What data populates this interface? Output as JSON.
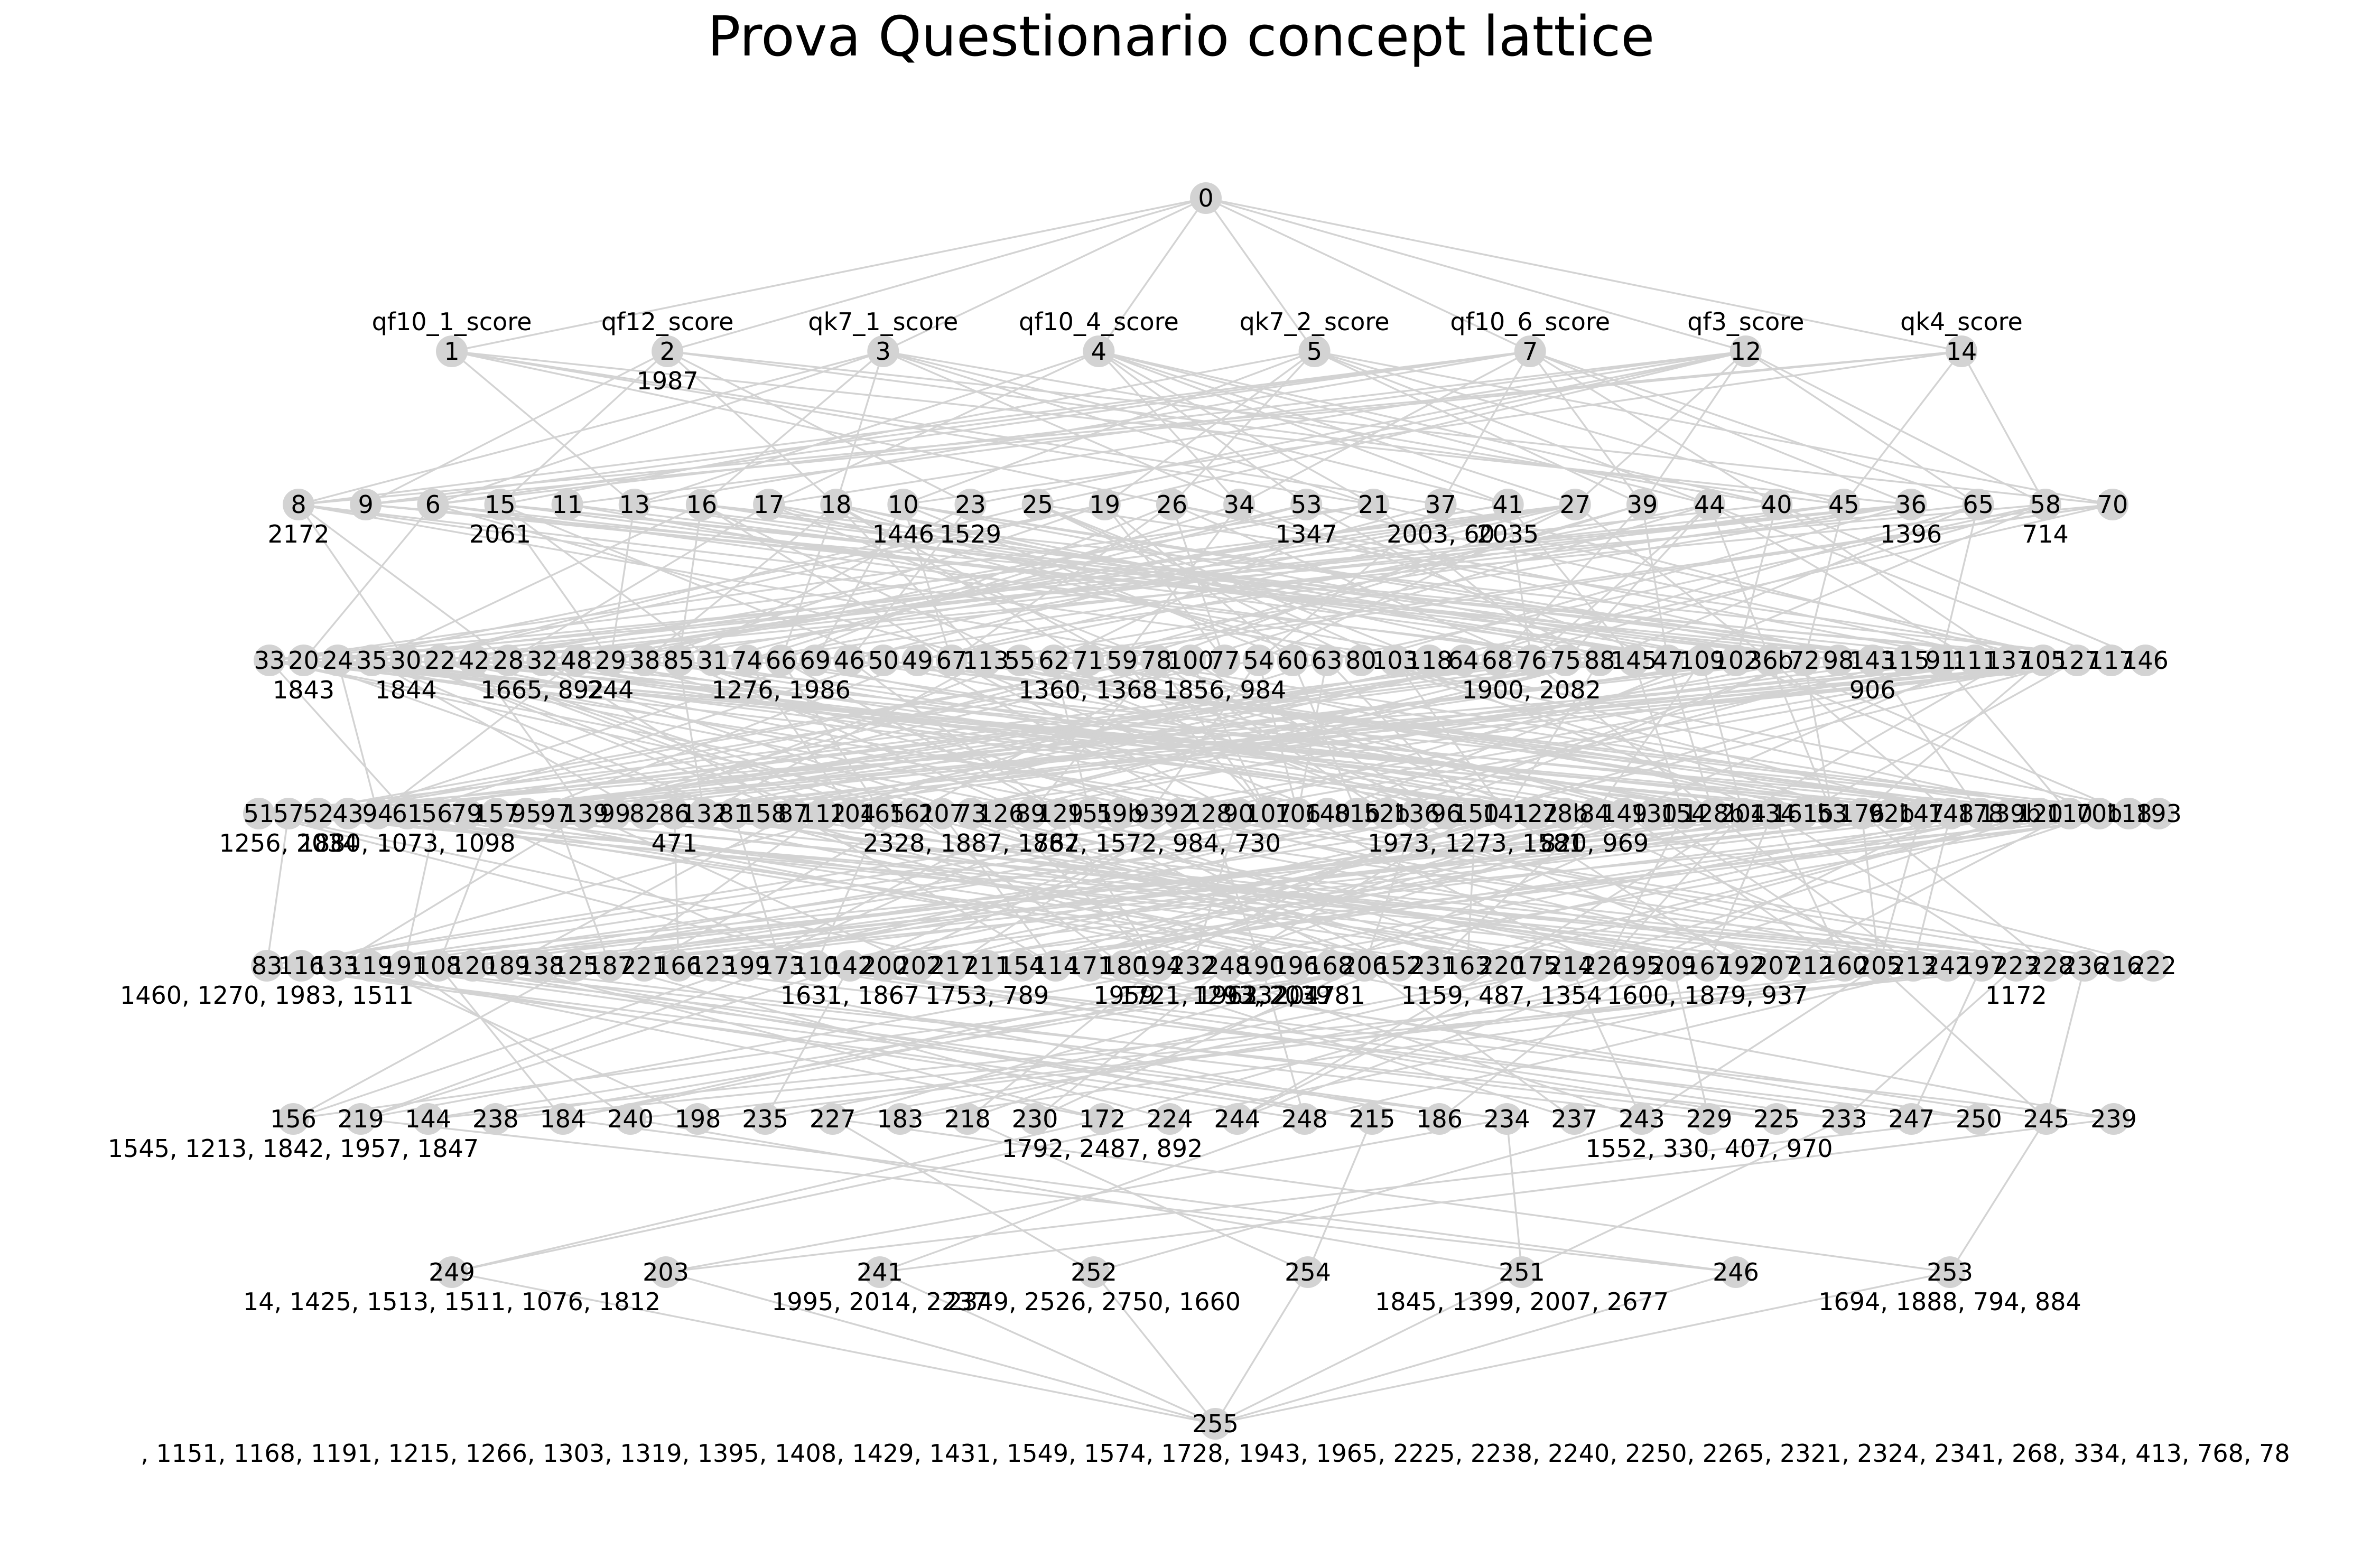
{
  "title": "Prova Questionario concept lattice",
  "colors": {
    "edge": "#d3d3d3",
    "node": "#d3d3d3",
    "text": "#000000"
  },
  "levels": [
    [
      "0"
    ],
    [
      "1",
      "2",
      "3",
      "4",
      "5",
      "7",
      "12",
      "14"
    ],
    [
      "8",
      "9",
      "6",
      "15",
      "11",
      "13",
      "16",
      "17",
      "18",
      "10",
      "23",
      "25",
      "19",
      "26",
      "34",
      "53",
      "21",
      "37",
      "41",
      "27",
      "39",
      "44",
      "40",
      "45",
      "36",
      "65",
      "58",
      "70"
    ],
    [
      "33",
      "20",
      "24",
      "35",
      "30",
      "22",
      "42",
      "28",
      "32",
      "48",
      "29",
      "38",
      "85",
      "31",
      "74",
      "66",
      "69",
      "46",
      "50",
      "49",
      "67",
      "113",
      "55",
      "62",
      "71",
      "59",
      "78",
      "100",
      "77",
      "54",
      "60",
      "63",
      "80",
      "103",
      "118",
      "64",
      "68",
      "76",
      "75",
      "88",
      "145",
      "47",
      "109",
      "102",
      "36b",
      "72",
      "98",
      "143",
      "115",
      "91",
      "111",
      "137",
      "105",
      "127",
      "117",
      "146"
    ],
    [
      "51",
      "57",
      "52",
      "43",
      "94",
      "61",
      "56",
      "79",
      "157",
      "95",
      "97",
      "139",
      "99",
      "82",
      "86",
      "132",
      "81",
      "158",
      "87",
      "112",
      "104",
      "165",
      "161",
      "207",
      "73",
      "126",
      "89",
      "129",
      "151",
      "59b",
      "93",
      "92",
      "128",
      "90",
      "107",
      "106",
      "140",
      "81b",
      "52b",
      "136",
      "96",
      "150",
      "141",
      "122",
      "78b",
      "84",
      "149",
      "130",
      "154",
      "128b",
      "204",
      "134",
      "161b",
      "53",
      "176",
      "92b",
      "147",
      "148",
      "178",
      "139b",
      "120",
      "110",
      "70b",
      "118",
      "193"
    ],
    [
      "83",
      "116",
      "133",
      "119",
      "191",
      "108",
      "120",
      "189",
      "138",
      "125",
      "187",
      "221",
      "166",
      "123",
      "199",
      "173",
      "110",
      "142",
      "200",
      "202",
      "217",
      "211",
      "154",
      "114",
      "171",
      "180",
      "194",
      "232",
      "248",
      "190",
      "196",
      "168",
      "206",
      "152",
      "231",
      "163",
      "220",
      "175",
      "214",
      "226",
      "195",
      "209",
      "167",
      "192",
      "207",
      "212",
      "160",
      "205",
      "213",
      "242",
      "197",
      "223",
      "228",
      "236",
      "216",
      "222"
    ],
    [
      "156",
      "219",
      "144",
      "238",
      "184",
      "240",
      "198",
      "235",
      "227",
      "183",
      "218",
      "230",
      "172",
      "224",
      "244",
      "248",
      "215",
      "186",
      "234",
      "237",
      "243",
      "229",
      "225",
      "233",
      "247",
      "250",
      "245",
      "239"
    ],
    [
      "249",
      "203",
      "241",
      "252",
      "254",
      "251",
      "246",
      "253"
    ],
    [
      "255"
    ]
  ],
  "attribute_labels": [
    {
      "node": "1",
      "text": "qf10_1_score"
    },
    {
      "node": "2",
      "text": "qf12_score"
    },
    {
      "node": "3",
      "text": "qk7_1_score"
    },
    {
      "node": "4",
      "text": "qf10_4_score"
    },
    {
      "node": "5",
      "text": "qk7_2_score"
    },
    {
      "node": "7",
      "text": "qf10_6_score"
    },
    {
      "node": "12",
      "text": "qf3_score"
    },
    {
      "node": "14",
      "text": "qk4_score"
    }
  ],
  "object_labels": [
    {
      "node": "2",
      "text": "1987"
    },
    {
      "node": "8",
      "text": "2172"
    },
    {
      "node": "15",
      "text": "2061"
    },
    {
      "node": "10",
      "text": "1446"
    },
    {
      "node": "23",
      "text": "1529"
    },
    {
      "node": "53",
      "text": "1347"
    },
    {
      "node": "37",
      "text": "2003, 60"
    },
    {
      "node": "41",
      "text": "2035"
    },
    {
      "node": "36",
      "text": "1396"
    },
    {
      "node": "58",
      "text": "714"
    },
    {
      "node": "20",
      "text": "1843"
    },
    {
      "node": "30",
      "text": "1844"
    },
    {
      "node": "32",
      "text": "1665, 892"
    },
    {
      "node": "29",
      "text": "244"
    },
    {
      "node": "66",
      "text": "1276, 1986"
    },
    {
      "node": "71",
      "text": "1360, 1368"
    },
    {
      "node": "77",
      "text": "1856, 984"
    },
    {
      "node": "76",
      "text": "1900, 2082"
    },
    {
      "node": "143",
      "text": "906"
    },
    {
      "node": "57",
      "text": "1256, 2034"
    },
    {
      "node": "61",
      "text": "1880, 1073, 1098"
    },
    {
      "node": "86",
      "text": "471"
    },
    {
      "node": "73",
      "text": "2328, 1887, 1882"
    },
    {
      "node": "93",
      "text": "1767, 1572, 984, 730"
    },
    {
      "node": "150",
      "text": "1973, 1273, 1581"
    },
    {
      "node": "84",
      "text": "820, 969"
    },
    {
      "node": "83",
      "text": "1460, 1270, 1983, 1511"
    },
    {
      "node": "142",
      "text": "1631, 1867"
    },
    {
      "node": "211",
      "text": "1753, 789"
    },
    {
      "node": "180",
      "text": "1959"
    },
    {
      "node": "190",
      "text": "1293, 2039"
    },
    {
      "node": "196",
      "text": "1332, 1781"
    },
    {
      "node": "220",
      "text": "1159, 487, 1354"
    },
    {
      "node": "167",
      "text": "1600, 1879, 937"
    },
    {
      "node": "223",
      "text": "1172"
    },
    {
      "node": "156",
      "text": "1545, 1213, 1842, 1957, 1847"
    },
    {
      "node": "172",
      "text": "1792, 2487, 892"
    },
    {
      "node": "248",
      "text": "1721, 1962, 2047"
    },
    {
      "node": "229",
      "text": "1552, 330, 407, 970"
    },
    {
      "node": "249",
      "text": "14, 1425, 1513, 1511, 1076, 1812"
    },
    {
      "node": "241",
      "text": "1995, 2014, 2237"
    },
    {
      "node": "252",
      "text": "2349, 2526, 2750, 1660"
    },
    {
      "node": "251",
      "text": "1845, 1399, 2007, 2677"
    },
    {
      "node": "253",
      "text": "1694, 1888, 794, 884"
    },
    {
      "node": "255",
      "text": ", 1151, 1168, 1191, 1215, 1266, 1303, 1319, 1395, 1408, 1429, 1431, 1549, 1574, 1728, 1943, 1965, 2225, 2238, 2240, 2250, 2265, 2321, 2324, 2341, 268, 334, 413, 768, 78"
    }
  ]
}
